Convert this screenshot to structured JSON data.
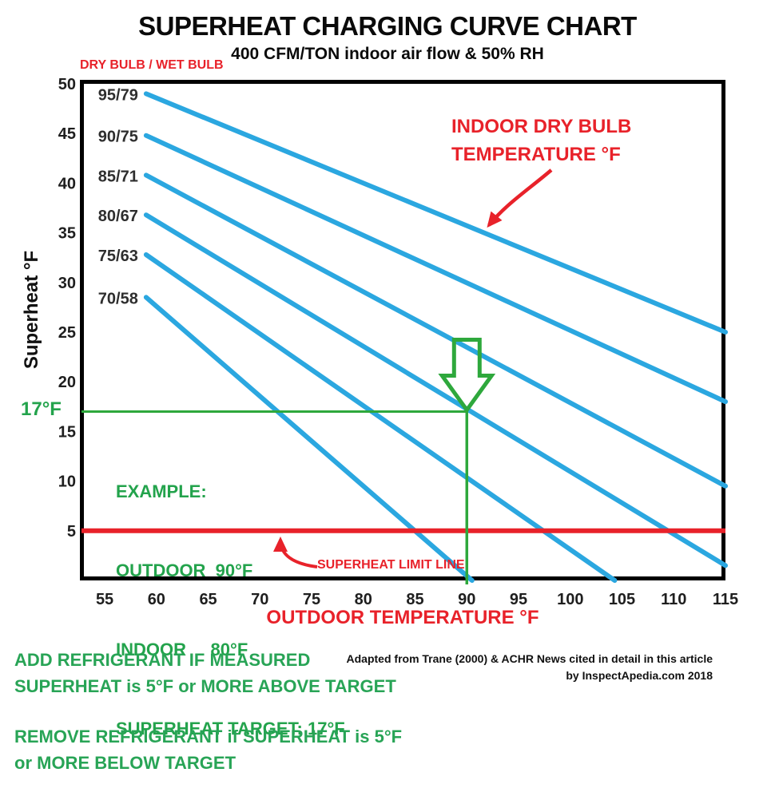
{
  "page": {
    "title": "SUPERHEAT CHARGING CURVE CHART",
    "subtitle": "400 CFM/TON indoor air flow & 50% RH"
  },
  "chart_data": {
    "type": "line",
    "title": "SUPERHEAT CHARGING CURVE CHART",
    "subtitle": "400 CFM/TON indoor air flow & 50% RH",
    "xlabel": "OUTDOOR TEMPERATURE °F",
    "ylabel": "Superheat °F",
    "legend_note": "DRY BULB / WET BULB",
    "series_annotation_line1": "INDOOR DRY BULB",
    "series_annotation_line2": "TEMPERATURE °F",
    "x_ticks": [
      55,
      60,
      65,
      70,
      75,
      80,
      85,
      90,
      95,
      100,
      105,
      110,
      115
    ],
    "y_ticks": [
      50,
      45,
      40,
      35,
      30,
      25,
      20,
      15,
      10,
      5
    ],
    "xlim": [
      52.6,
      115
    ],
    "ylim": [
      0,
      50.4
    ],
    "grid": false,
    "line_color": "#2ba7e0",
    "series": [
      {
        "name": "95/79",
        "points": [
          [
            59,
            49.0
          ],
          [
            115,
            25.0
          ]
        ]
      },
      {
        "name": "90/75",
        "points": [
          [
            59,
            44.8
          ],
          [
            115,
            18.0
          ]
        ]
      },
      {
        "name": "85/71",
        "points": [
          [
            59,
            40.8
          ],
          [
            115,
            9.5
          ]
        ]
      },
      {
        "name": "80/67",
        "points": [
          [
            59,
            36.8
          ],
          [
            115,
            1.5
          ]
        ]
      },
      {
        "name": "75/63",
        "points": [
          [
            59,
            32.8
          ],
          [
            104.3,
            0
          ]
        ]
      },
      {
        "name": "70/58",
        "points": [
          [
            59,
            28.5
          ],
          [
            90.5,
            0
          ]
        ]
      }
    ],
    "limit_line": {
      "y": 5,
      "label": "SUPERHEAT LIMIT LINE",
      "color": "#e8222a"
    },
    "example": {
      "outdoor": 90,
      "superheat": 17,
      "axis_label": "17°F",
      "color": "#2ea83c",
      "lines": [
        "EXAMPLE:",
        "OUTDOOR  90°F",
        "INDOOR     80°F",
        "SUPERHEAT TARGET: 17°F"
      ]
    }
  },
  "footer": {
    "add_line1": "ADD REFRIGERANT IF MEASURED",
    "add_line2": "SUPERHEAT is 5°F or MORE ABOVE TARGET",
    "remove_line1": "REMOVE REFRIGERANT if SUPERHEAT  is 5°F",
    "remove_line2": "or MORE BELOW TARGET",
    "attribution_line1": "Adapted from Trane (2000) & ACHR News cited in detail in this article",
    "attribution_line2": "by  InspectApedia.com 2018"
  }
}
